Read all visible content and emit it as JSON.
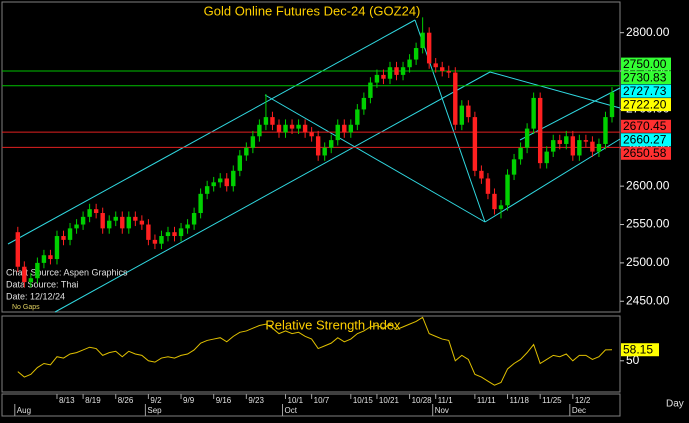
{
  "chart_data": {
    "type": "candlestick",
    "title": "Gold Online Futures Dec-24 (GOZ24)",
    "annotations": [
      "Chart Source: Aspen Graphics",
      "Data Source: Thai",
      "Date: 12/12/24",
      "No Gaps"
    ],
    "x_unit_label": "Day",
    "up_color": "#00d000",
    "down_color": "#ff2020",
    "categories": [
      null,
      null,
      null,
      null,
      null,
      null,
      "8/13",
      null,
      null,
      null,
      "8/19",
      null,
      null,
      null,
      null,
      "8/26",
      null,
      null,
      null,
      null,
      "9/2",
      null,
      null,
      null,
      null,
      "9/9",
      null,
      null,
      null,
      null,
      "9/16",
      null,
      null,
      null,
      null,
      "9/23",
      null,
      null,
      null,
      null,
      null,
      "10/1",
      null,
      null,
      null,
      "10/7",
      null,
      null,
      null,
      null,
      null,
      "10/15",
      null,
      null,
      null,
      "10/21",
      null,
      null,
      null,
      null,
      "10/28",
      null,
      null,
      null,
      "11/1",
      null,
      null,
      null,
      null,
      null,
      "11/11",
      null,
      null,
      null,
      null,
      "11/18",
      null,
      null,
      null,
      null,
      "11/25",
      null,
      null,
      null,
      null,
      "12/2",
      null,
      null,
      null,
      null,
      null,
      null
    ],
    "months": [
      "Aug",
      null,
      null,
      null,
      null,
      null,
      null,
      null,
      null,
      null,
      null,
      null,
      null,
      null,
      null,
      null,
      null,
      null,
      null,
      null,
      "Sep",
      null,
      null,
      null,
      null,
      null,
      null,
      null,
      null,
      null,
      null,
      null,
      null,
      null,
      null,
      null,
      null,
      null,
      null,
      null,
      null,
      "Oct",
      null,
      null,
      null,
      null,
      null,
      null,
      null,
      null,
      null,
      null,
      null,
      null,
      null,
      null,
      null,
      null,
      null,
      null,
      null,
      null,
      null,
      null,
      "Nov",
      null,
      null,
      null,
      null,
      null,
      null,
      null,
      null,
      null,
      null,
      null,
      null,
      null,
      null,
      null,
      null,
      null,
      null,
      null,
      null,
      "Dec",
      null,
      null,
      null,
      null,
      null,
      null
    ],
    "ohlc": [
      [
        2540,
        2547,
        2488,
        2495
      ],
      [
        2495,
        2502,
        2468,
        2475
      ],
      [
        2475,
        2487,
        2468,
        2480
      ],
      [
        2480,
        2507,
        2473,
        2500
      ],
      [
        2500,
        2517,
        2493,
        2510
      ],
      [
        2510,
        2517,
        2498,
        2505
      ],
      [
        2505,
        2542,
        2498,
        2535
      ],
      [
        2535,
        2542,
        2523,
        2530
      ],
      [
        2530,
        2552,
        2523,
        2545
      ],
      [
        2545,
        2557,
        2538,
        2550
      ],
      [
        2550,
        2567,
        2543,
        2560
      ],
      [
        2560,
        2577,
        2553,
        2570
      ],
      [
        2570,
        2577,
        2558,
        2565
      ],
      [
        2565,
        2572,
        2538,
        2545
      ],
      [
        2545,
        2562,
        2538,
        2555
      ],
      [
        2555,
        2567,
        2548,
        2560
      ],
      [
        2560,
        2567,
        2538,
        2545
      ],
      [
        2545,
        2567,
        2538,
        2560
      ],
      [
        2560,
        2567,
        2548,
        2555
      ],
      [
        2555,
        2562,
        2543,
        2550
      ],
      [
        2550,
        2557,
        2523,
        2530
      ],
      [
        2530,
        2537,
        2518,
        2525
      ],
      [
        2525,
        2542,
        2518,
        2535
      ],
      [
        2535,
        2547,
        2528,
        2540
      ],
      [
        2540,
        2547,
        2528,
        2535
      ],
      [
        2535,
        2552,
        2528,
        2545
      ],
      [
        2545,
        2557,
        2538,
        2550
      ],
      [
        2550,
        2572,
        2543,
        2565
      ],
      [
        2565,
        2597,
        2558,
        2590
      ],
      [
        2590,
        2607,
        2583,
        2600
      ],
      [
        2600,
        2612,
        2593,
        2605
      ],
      [
        2605,
        2617,
        2598,
        2610
      ],
      [
        2610,
        2617,
        2593,
        2600
      ],
      [
        2600,
        2627,
        2593,
        2620
      ],
      [
        2620,
        2647,
        2613,
        2640
      ],
      [
        2640,
        2657,
        2633,
        2650
      ],
      [
        2650,
        2672,
        2643,
        2665
      ],
      [
        2665,
        2687,
        2658,
        2680
      ],
      [
        2680,
        2720,
        2673,
        2690
      ],
      [
        2690,
        2697,
        2673,
        2680
      ],
      [
        2680,
        2687,
        2663,
        2670
      ],
      [
        2670,
        2687,
        2663,
        2680
      ],
      [
        2680,
        2687,
        2668,
        2675
      ],
      [
        2675,
        2687,
        2668,
        2680
      ],
      [
        2680,
        2687,
        2663,
        2670
      ],
      [
        2670,
        2677,
        2658,
        2665
      ],
      [
        2665,
        2672,
        2633,
        2640
      ],
      [
        2640,
        2657,
        2633,
        2650
      ],
      [
        2650,
        2667,
        2643,
        2660
      ],
      [
        2660,
        2687,
        2653,
        2680
      ],
      [
        2680,
        2687,
        2663,
        2670
      ],
      [
        2670,
        2687,
        2663,
        2680
      ],
      [
        2680,
        2707,
        2673,
        2700
      ],
      [
        2700,
        2722,
        2693,
        2715
      ],
      [
        2715,
        2742,
        2708,
        2735
      ],
      [
        2735,
        2752,
        2728,
        2745
      ],
      [
        2745,
        2752,
        2733,
        2740
      ],
      [
        2740,
        2762,
        2733,
        2755
      ],
      [
        2755,
        2762,
        2738,
        2745
      ],
      [
        2745,
        2762,
        2738,
        2755
      ],
      [
        2755,
        2772,
        2748,
        2765
      ],
      [
        2765,
        2787,
        2758,
        2780
      ],
      [
        2780,
        2820,
        2773,
        2800
      ],
      [
        2800,
        2807,
        2753,
        2760
      ],
      [
        2760,
        2767,
        2748,
        2755
      ],
      [
        2755,
        2762,
        2743,
        2750
      ],
      [
        2750,
        2757,
        2741,
        2748
      ],
      [
        2748,
        2755,
        2673,
        2680
      ],
      [
        2680,
        2712,
        2673,
        2705
      ],
      [
        2705,
        2712,
        2683,
        2690
      ],
      [
        2690,
        2697,
        2613,
        2620
      ],
      [
        2620,
        2627,
        2603,
        2610
      ],
      [
        2610,
        2617,
        2583,
        2590
      ],
      [
        2590,
        2597,
        2563,
        2570
      ],
      [
        2570,
        2582,
        2558,
        2575
      ],
      [
        2575,
        2622,
        2568,
        2615
      ],
      [
        2615,
        2642,
        2608,
        2635
      ],
      [
        2635,
        2657,
        2628,
        2650
      ],
      [
        2650,
        2682,
        2643,
        2675
      ],
      [
        2675,
        2722,
        2668,
        2715
      ],
      [
        2715,
        2722,
        2623,
        2630
      ],
      [
        2630,
        2652,
        2623,
        2645
      ],
      [
        2645,
        2667,
        2638,
        2660
      ],
      [
        2660,
        2667,
        2648,
        2655
      ],
      [
        2655,
        2672,
        2648,
        2665
      ],
      [
        2665,
        2672,
        2633,
        2640
      ],
      [
        2640,
        2667,
        2633,
        2660
      ],
      [
        2660,
        2667,
        2651,
        2658
      ],
      [
        2658,
        2665,
        2638,
        2645
      ],
      [
        2645,
        2662,
        2638,
        2655
      ],
      [
        2655,
        2697,
        2648,
        2690
      ],
      [
        2690,
        2729,
        2683,
        2722.2
      ]
    ],
    "ylim": [
      2436,
      2840
    ],
    "yticks": [
      {
        "value": 2450,
        "label": "2450.00"
      },
      {
        "value": 2500,
        "label": "2500.00"
      },
      {
        "value": 2550,
        "label": "2550.00"
      },
      {
        "value": 2600,
        "label": "2600.00"
      },
      {
        "value": 2650,
        "label": "2650.00"
      },
      {
        "value": 2700,
        "label": "2700.00"
      },
      {
        "value": 2750,
        "label": "2750.00"
      },
      {
        "value": 2800,
        "label": "2800.00"
      }
    ],
    "levels": [
      {
        "value": 2750,
        "label": "2750.00",
        "color": "#33ff33",
        "line_color": "#00c000"
      },
      {
        "value": 2730.83,
        "label": "2730.83",
        "color": "#33ff33",
        "line_color": "#00c000"
      },
      {
        "value": 2727.73,
        "label": "2727.73",
        "color": "#00ffff"
      },
      {
        "value": 2722.2,
        "label": "2722.20",
        "color": "#ffff00"
      },
      {
        "value": 2670.45,
        "label": "2670.45",
        "color": "#ff3030",
        "line_color": "#e02020"
      },
      {
        "value": 2660.27,
        "label": "2660.27",
        "color": "#00ffff"
      },
      {
        "value": 2650.58,
        "label": "2650.58",
        "color": "#ff3030",
        "line_color": "#e02020"
      }
    ],
    "rsi": {
      "title": "Relative Strength Index",
      "color": "#e0c000",
      "ylim": [
        27,
        83
      ],
      "yticks": [
        50
      ],
      "values": [
        42,
        38,
        40,
        45,
        48,
        47,
        53,
        52,
        55,
        56,
        58,
        60,
        59,
        54,
        56,
        57,
        53,
        57,
        55,
        54,
        50,
        49,
        52,
        53,
        52,
        54,
        55,
        58,
        63,
        65,
        66,
        67,
        64,
        68,
        71,
        72,
        74,
        76,
        77,
        74,
        70,
        72,
        70,
        71,
        68,
        66,
        59,
        61,
        63,
        67,
        64,
        66,
        70,
        72,
        75,
        76,
        74,
        77,
        73,
        75,
        77,
        79,
        82,
        70,
        68,
        66,
        65,
        50,
        54,
        51,
        40,
        38,
        35,
        32,
        34,
        44,
        48,
        51,
        56,
        62,
        48,
        51,
        54,
        53,
        55,
        50,
        54,
        54,
        51,
        53,
        58,
        58.15
      ]
    }
  }
}
